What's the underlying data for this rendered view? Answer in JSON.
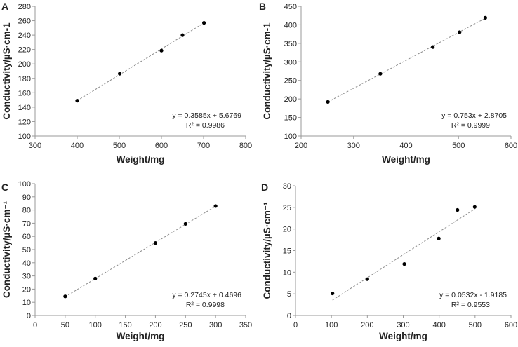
{
  "chart_data": [
    {
      "panel": "A",
      "type": "scatter",
      "xlabel": "Weight/mg",
      "ylabel": "Conductivity/µS·cm-1",
      "xlim": [
        300,
        800
      ],
      "xticks": [
        300,
        400,
        500,
        600,
        700,
        800
      ],
      "ylim": [
        100,
        280
      ],
      "yticks": [
        100,
        120,
        140,
        160,
        180,
        200,
        220,
        240,
        260,
        280
      ],
      "x": [
        400,
        501,
        600,
        650,
        701
      ],
      "y": [
        149,
        186.5,
        218.5,
        240,
        257
      ],
      "trendline": {
        "slope": 0.3585,
        "intercept": 5.6769,
        "equation": "y = 0.3585x + 5.6769",
        "r2": "R² = 0.9986"
      },
      "grid": false
    },
    {
      "panel": "B",
      "type": "scatter",
      "xlabel": "Weight/mg",
      "ylabel": "Conductivity/µS·cm-1",
      "xlim": [
        200,
        600
      ],
      "xticks": [
        200,
        300,
        400,
        500,
        600
      ],
      "ylim": [
        100,
        450
      ],
      "yticks": [
        100,
        150,
        200,
        250,
        300,
        350,
        400,
        450
      ],
      "x": [
        251,
        351,
        451,
        502,
        551
      ],
      "y": [
        192,
        268,
        340,
        380,
        419
      ],
      "trendline": {
        "slope": 0.753,
        "intercept": 2.8705,
        "equation": "y = 0.753x + 2.8705",
        "r2": "R² = 0.9999"
      },
      "grid": false
    },
    {
      "panel": "C",
      "type": "scatter",
      "xlabel": "Weight/mg",
      "ylabel": "Conductivity/µS·cm⁻¹",
      "xlim": [
        0,
        350
      ],
      "xticks": [
        0,
        50,
        100,
        150,
        200,
        250,
        300,
        350
      ],
      "ylim": [
        0,
        100
      ],
      "yticks": [
        0,
        10,
        20,
        30,
        40,
        50,
        60,
        70,
        80,
        90,
        100
      ],
      "x": [
        50,
        100,
        200,
        250,
        300
      ],
      "y": [
        14.5,
        28,
        55,
        69.5,
        83
      ],
      "trendline": {
        "slope": 0.2745,
        "intercept": 0.4696,
        "equation": "y = 0.2745x + 0.4696",
        "r2": "R² = 0.9998"
      },
      "grid": false
    },
    {
      "panel": "D",
      "type": "scatter",
      "xlabel": "Weight/mg",
      "ylabel": "Conductivity/µS·cm⁻¹",
      "xlim": [
        0,
        600
      ],
      "xticks": [
        0,
        100,
        200,
        300,
        400,
        500,
        600
      ],
      "ylim": [
        0,
        30
      ],
      "yticks": [
        0,
        5,
        10,
        15,
        20,
        25,
        30
      ],
      "x": [
        103,
        200,
        303,
        399,
        451,
        499
      ],
      "y": [
        5.1,
        8.4,
        11.9,
        17.8,
        24.4,
        25.1
      ],
      "trendline": {
        "slope": 0.0532,
        "intercept": -1.9185,
        "equation": "y = 0.0532x - 1.9185",
        "r2": "R² = 0.9553"
      },
      "grid": false
    }
  ],
  "colors": {
    "points": "#000000",
    "trendline": "#8c8c8c",
    "axis": "#9a9a9a"
  }
}
